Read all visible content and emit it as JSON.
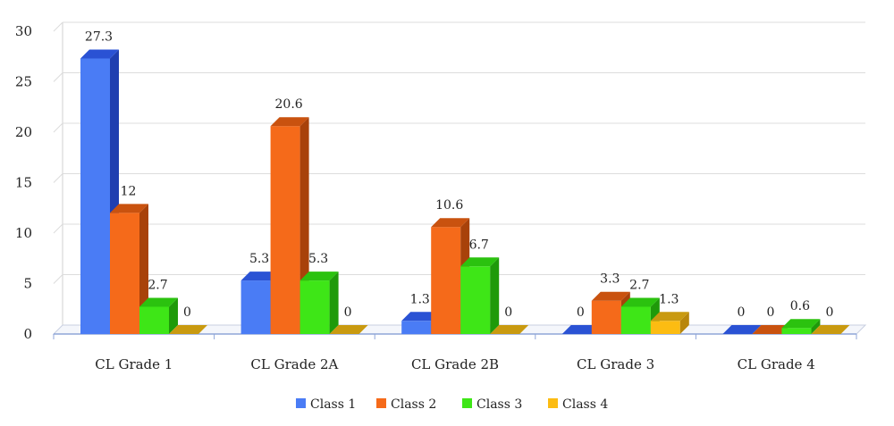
{
  "chart_data": {
    "type": "bar",
    "categories": [
      "CL Grade 1",
      "CL Grade 2A",
      "CL Grade 2B",
      "CL Grade 3",
      "CL Grade 4"
    ],
    "series": [
      {
        "name": "Class 1",
        "values": [
          27.3,
          5.3,
          1.3,
          0,
          0
        ],
        "labels": [
          "27.3",
          "5.3",
          "1.3",
          "0",
          "0"
        ],
        "color": "#4a7cf5",
        "side": "#1f3fb0",
        "top": "#2a52d4"
      },
      {
        "name": "Class 2",
        "values": [
          12,
          20.6,
          10.6,
          3.3,
          0
        ],
        "labels": [
          "12",
          "20.6",
          "10.6",
          "3.3",
          "0"
        ],
        "color": "#f56a1a",
        "side": "#a8420a",
        "top": "#c9520f"
      },
      {
        "name": "Class 3",
        "values": [
          2.7,
          5.3,
          6.7,
          2.7,
          0.6
        ],
        "labels": [
          "2.7",
          "5.3",
          "6.7",
          "2.7",
          "0.6"
        ],
        "color": "#3ee617",
        "side": "#1f9a0a",
        "top": "#2bc20f"
      },
      {
        "name": "Class 4",
        "values": [
          0,
          0,
          0,
          1.3,
          0
        ],
        "labels": [
          "0",
          "0",
          "0",
          "1.3",
          "0"
        ],
        "color": "#fcbc12",
        "side": "#b8860b",
        "top": "#c99a10"
      }
    ],
    "yticks": [
      "0",
      "5",
      "10",
      "15",
      "20",
      "25",
      "30"
    ],
    "ylim": [
      0,
      30
    ],
    "grid": true,
    "legend": "bottom"
  }
}
